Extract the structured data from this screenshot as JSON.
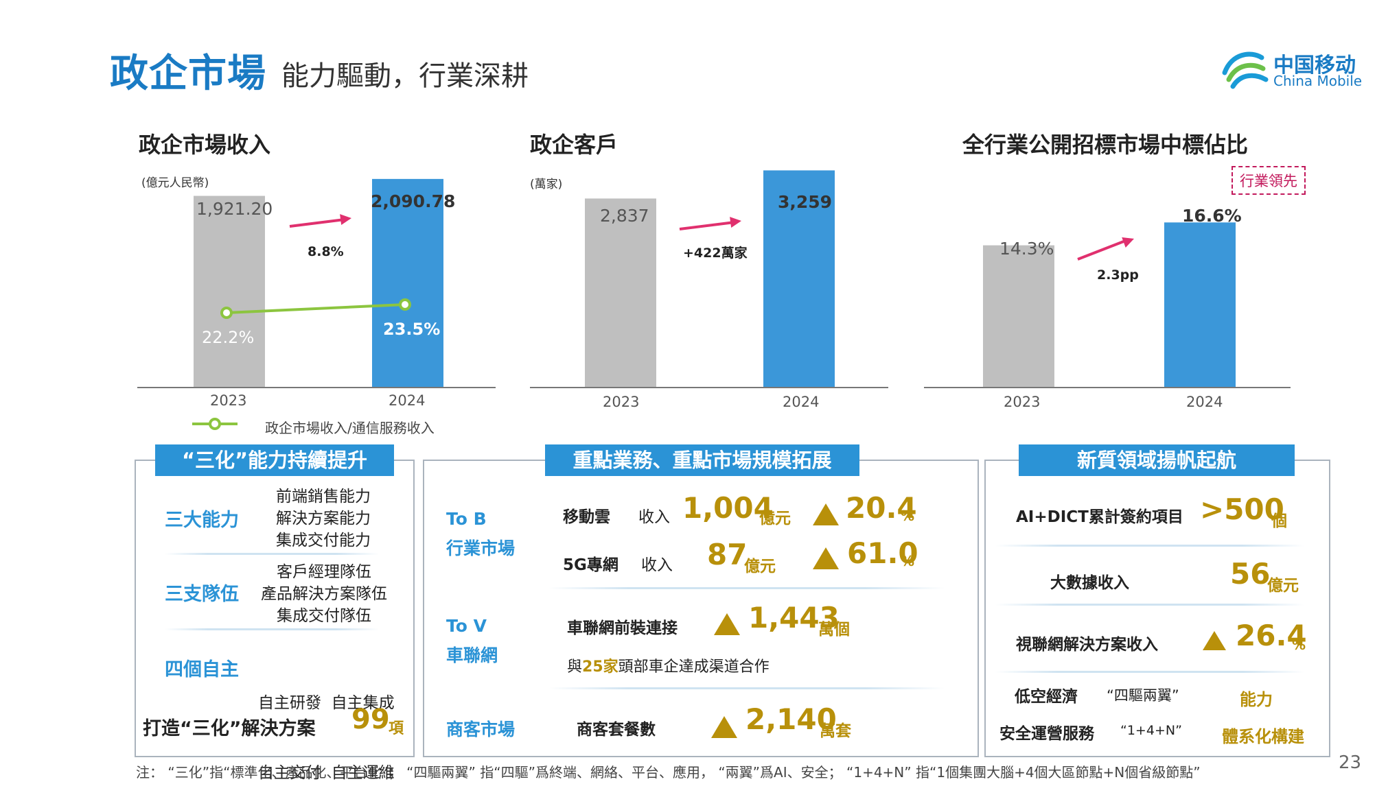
{
  "header": {
    "title_main": "政企市場",
    "title_sub": "能力驅動，行業深耕"
  },
  "logo": {
    "cn": "中国移动",
    "en": "China Mobile"
  },
  "charts": {
    "revenue": {
      "title": "政企市場收入",
      "unit": "(億元人民幣)",
      "growth": "8.8%",
      "legend": "政企市場收入/通信服務收入",
      "years": [
        "2023",
        "2024"
      ],
      "value_labels": [
        "1,921.20",
        "2,090.78"
      ],
      "ratio_labels": [
        "22.2%",
        "23.5%"
      ]
    },
    "customers": {
      "title": "政企客戶",
      "unit": "(萬家)",
      "growth": "+422萬家",
      "years": [
        "2023",
        "2024"
      ],
      "value_labels": [
        "2,837",
        "3,259"
      ]
    },
    "share": {
      "title": "全行業公開招標市場中標佔比",
      "badge": "行業領先",
      "growth": "2.3pp",
      "years": [
        "2023",
        "2024"
      ],
      "value_labels": [
        "14.3%",
        "16.6%"
      ]
    }
  },
  "chart_data": [
    {
      "type": "bar",
      "title": "政企市場收入",
      "categories": [
        "2023",
        "2024"
      ],
      "series": [
        {
          "values": [
            1921.2,
            2090.78
          ]
        }
      ],
      "ylabel": "(億元人民幣)",
      "ylim": [
        0,
        2200
      ],
      "line_series": {
        "name": "政企市場收入/通信服務收入",
        "values": [
          22.2,
          23.5
        ],
        "unit": "%"
      },
      "legend": "bottom"
    },
    {
      "type": "bar",
      "title": "政企客戶",
      "categories": [
        "2023",
        "2024"
      ],
      "series": [
        {
          "values": [
            2837,
            3259
          ]
        }
      ],
      "ylabel": "(萬家)",
      "ylim": [
        0,
        3500
      ]
    },
    {
      "type": "bar",
      "title": "全行業公開招標市場中標佔比",
      "categories": [
        "2023",
        "2024"
      ],
      "series": [
        {
          "values": [
            14.3,
            16.6
          ]
        }
      ],
      "ylim": [
        0,
        20
      ]
    }
  ],
  "panel1": {
    "header": "“三化”能力持續提升",
    "groups": [
      {
        "label": "三大能力",
        "items": [
          "前端銷售能力",
          "解決方案能力",
          "集成交付能力"
        ]
      },
      {
        "label": "三支隊伍",
        "items": [
          "客戶經理隊伍",
          "產品解決方案隊伍",
          "集成交付隊伍"
        ]
      },
      {
        "label": "四個自主",
        "items": [
          "自主研發  自主集成",
          "自主交付  自主運維"
        ]
      }
    ],
    "bottom_text": "打造“三化”解決方案",
    "bottom_num": "99",
    "bottom_unit": "項"
  },
  "panel2": {
    "header": "重點業務、重點市場規模拓展",
    "tob": {
      "label1": "To B",
      "label2": "行業市場",
      "rows": [
        {
          "name": "移動雲",
          "kind": "收入",
          "value": "1,004",
          "unit": "億元",
          "growth": "20.4",
          "pct": "%"
        },
        {
          "name": "5G專網",
          "kind": "收入",
          "value": "87",
          "unit": "億元",
          "growth": "61.0",
          "pct": "%"
        }
      ]
    },
    "tov": {
      "label1": "To V",
      "label2": "車聯網",
      "name": "車聯網前裝連接",
      "value": "1,443",
      "unit": "萬個",
      "note_pre": "與",
      "note_num": "25家",
      "note_post": "頭部車企達成渠道合作"
    },
    "merchant": {
      "label": "商客市場",
      "name": "商客套餐數",
      "value": "2,140",
      "unit": "萬套"
    }
  },
  "panel3": {
    "header": "新質領域揚帆起航",
    "rows": [
      {
        "name": "AI+DICT累計簽約項目",
        "value": ">500",
        "unit": "個"
      },
      {
        "name": "大數據收入",
        "value": "56",
        "unit": "億元"
      },
      {
        "name": "視聯網解決方案收入",
        "value": "26.4",
        "unit": "%"
      }
    ],
    "low_alt": {
      "name": "低空經濟",
      "quote": "“四驅兩翼”",
      "result": "能力"
    },
    "security": {
      "name": "安全運營服務",
      "quote": "“1+4+N”",
      "result": "體系化構建"
    }
  },
  "footnote": "注：  “三化”指“標準化、產品化、平台化”；  “四驅兩翼”  指“四驅”爲終端、網絡、平台、應用，  “兩翼”爲AI、安全；   “1+4+N”  指“1個集團大腦+4個大區節點+N個省級節點”",
  "page_number": "23",
  "colors": {
    "blue": "#3b97d9",
    "grey": "#bfbfbf",
    "green": "#8cc53f",
    "pink": "#e0306e",
    "gold": "#b8900a"
  }
}
